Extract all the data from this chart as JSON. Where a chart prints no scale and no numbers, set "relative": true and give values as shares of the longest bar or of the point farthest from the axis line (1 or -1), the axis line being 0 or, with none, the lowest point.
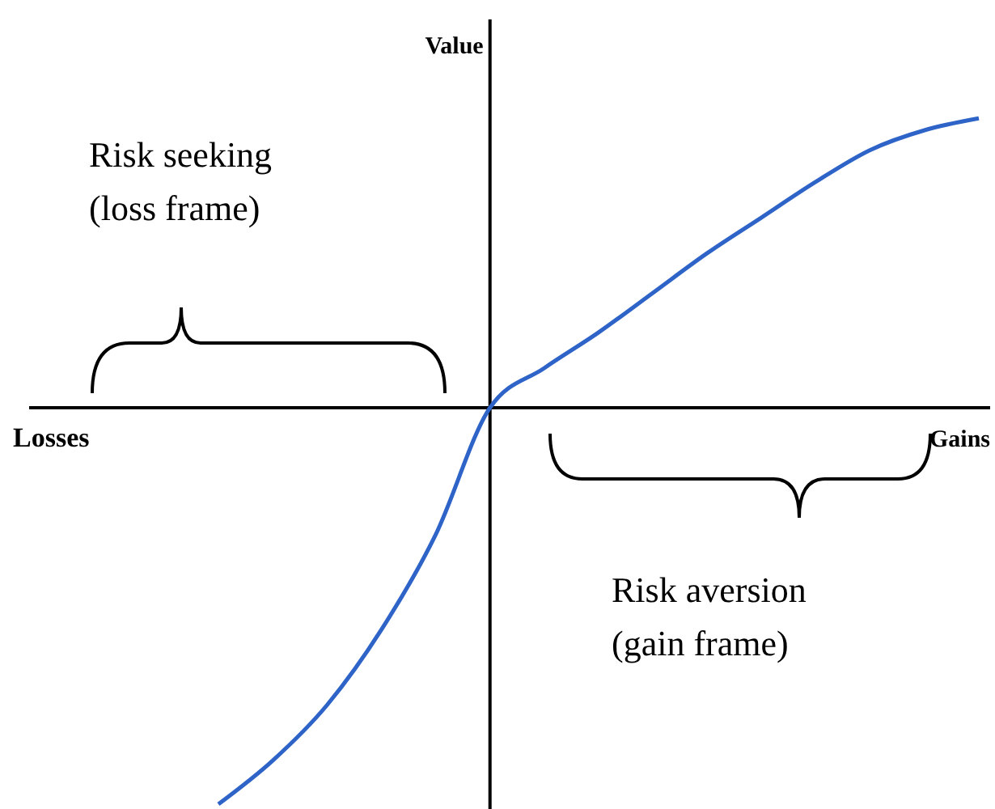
{
  "chart_data": {
    "type": "line",
    "relative": true,
    "ylabel": "Value",
    "xlabel": "Gains",
    "categories": [
      null,
      null,
      null,
      null,
      null,
      null,
      null,
      null,
      null,
      null,
      null,
      null,
      null,
      null,
      null
    ],
    "series": [
      {
        "color": "#2e63c8",
        "values": [
          -1,
          -0.89,
          -0.75,
          -0.56,
          -0.32,
          0,
          0.1,
          0.19,
          0.29,
          0.39,
          0.48,
          0.57,
          0.65,
          0.7,
          0.73
        ]
      }
    ],
    "annotations": [
      "Losses",
      "Risk seeking\n(loss frame)",
      "Risk aversion\n(gain frame)"
    ],
    "line_style": "solid",
    "marker": "none",
    "grid": false
  }
}
